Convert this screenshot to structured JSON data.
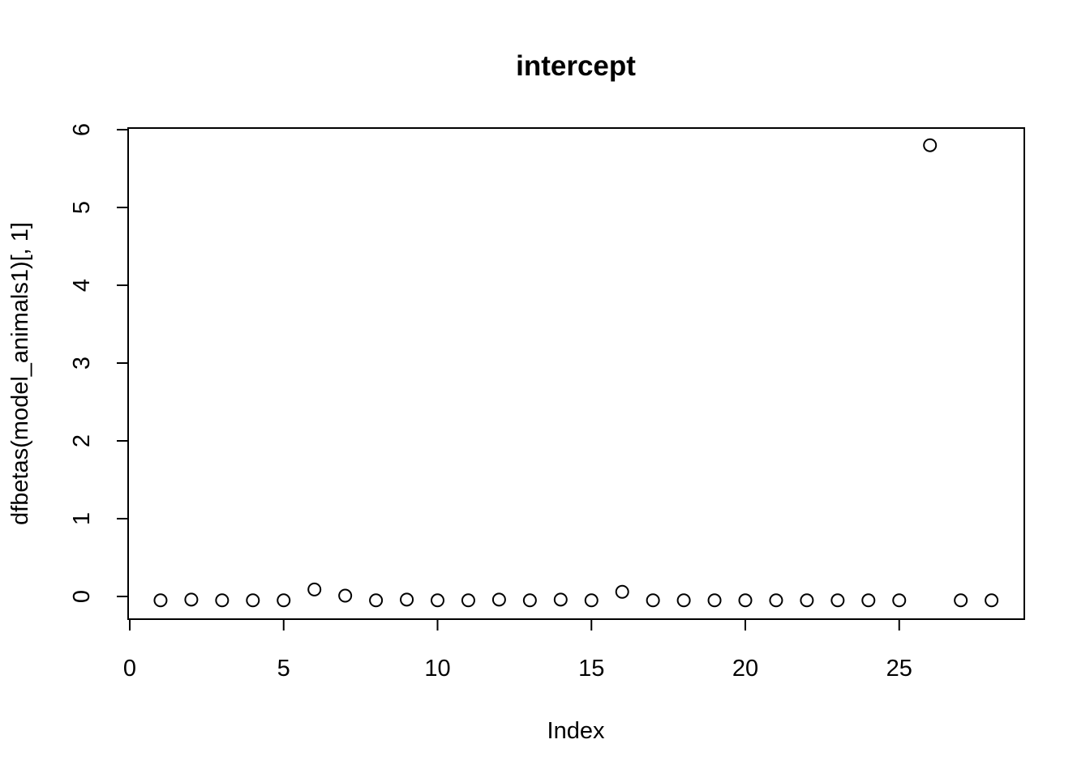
{
  "chart_data": {
    "type": "scatter",
    "title": "intercept",
    "xlabel": "Index",
    "ylabel": "dfbetas(model_animals1)[, 1]",
    "xlim": [
      0,
      29
    ],
    "ylim": [
      -0.3,
      6
    ],
    "x_ticks": [
      0,
      5,
      10,
      15,
      20,
      25
    ],
    "y_ticks": [
      0,
      1,
      2,
      3,
      4,
      5,
      6
    ],
    "x_tick_labels": [
      "0",
      "5",
      "10",
      "15",
      "20",
      "25"
    ],
    "y_tick_labels": [
      "0",
      "1",
      "2",
      "3",
      "4",
      "5",
      "6"
    ],
    "grid": false,
    "legend": "none",
    "x": [
      1,
      2,
      3,
      4,
      5,
      6,
      7,
      8,
      9,
      10,
      11,
      12,
      13,
      14,
      15,
      16,
      17,
      18,
      19,
      20,
      21,
      22,
      23,
      24,
      25,
      26,
      27,
      28
    ],
    "y": [
      -0.05,
      -0.04,
      -0.05,
      -0.05,
      -0.05,
      0.09,
      0.01,
      -0.05,
      -0.04,
      -0.05,
      -0.05,
      -0.04,
      -0.05,
      -0.04,
      -0.05,
      0.06,
      -0.05,
      -0.05,
      -0.05,
      -0.05,
      -0.05,
      -0.05,
      -0.05,
      -0.05,
      -0.05,
      5.8,
      -0.05,
      -0.05
    ]
  }
}
